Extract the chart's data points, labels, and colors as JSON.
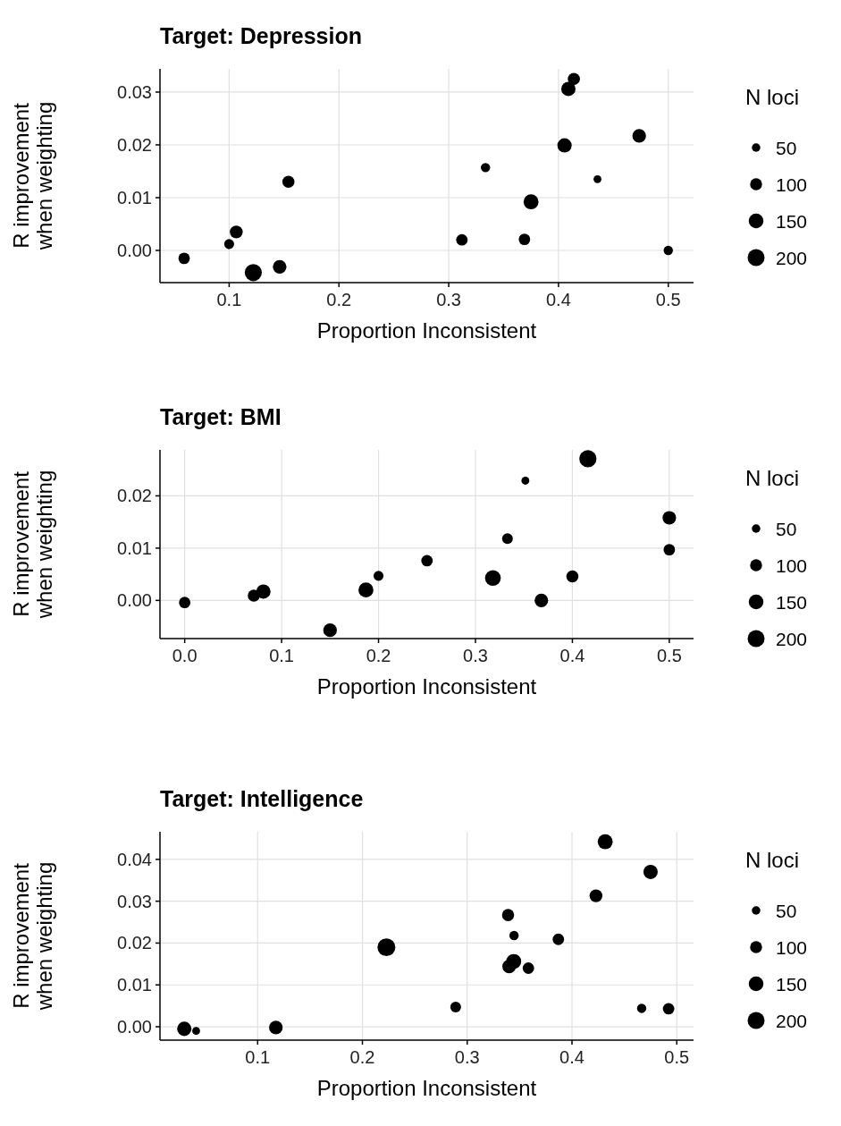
{
  "chart_data": [
    {
      "type": "bubble",
      "title": "Target: Depression",
      "xlabel": "Proportion Inconsistent",
      "ylabel": "R improvement\nwhen weighting",
      "legend_title": "N loci",
      "grid": true,
      "color": "#000000",
      "x": [
        0.059,
        0.1,
        0.1065,
        0.122,
        0.146,
        0.154,
        0.312,
        0.3335,
        0.369,
        0.375,
        0.4055,
        0.409,
        0.414,
        0.4355,
        0.4735,
        0.5
      ],
      "values": [
        -0.0015,
        0.0012,
        0.0035,
        -0.0042,
        -0.0031,
        0.013,
        0.002,
        0.0157,
        0.0021,
        0.0092,
        0.0199,
        0.0306,
        0.0325,
        0.0135,
        0.0217,
        0
      ],
      "sizes": [
        91,
        69,
        115,
        204,
        128,
        102,
        91,
        60,
        91,
        156,
        142,
        142,
        102,
        43,
        128,
        60
      ],
      "size_legend": [
        50,
        100,
        150,
        200
      ],
      "xlim": [
        0.037,
        0.523
      ],
      "xticks": [
        0.1,
        0.2,
        0.3,
        0.4,
        0.5
      ],
      "ylim": [
        -0.0061,
        0.0344
      ],
      "yticks": [
        {
          "value": 0,
          "label": "0.00"
        },
        {
          "value": 0.01,
          "label": "0.01"
        },
        {
          "value": 0.02,
          "label": "0.02"
        },
        {
          "value": 0.03,
          "label": "0.03"
        }
      ]
    },
    {
      "type": "bubble",
      "title": "Target: BMI",
      "xlabel": "Proportion Inconsistent",
      "ylabel": "R improvement\nwhen weighting",
      "legend_title": "N loci",
      "grid": true,
      "color": "#000000",
      "x": [
        0,
        0.0713,
        0.0812,
        0.15,
        0.187,
        0.2,
        0.25,
        0.318,
        0.333,
        0.3515,
        0.368,
        0.4,
        0.416,
        0.5,
        0.5
      ],
      "values": [
        -0.0004,
        0.0009,
        0.0017,
        -0.0057,
        0.002,
        0.0047,
        0.0076,
        0.0043,
        0.0118,
        0.0229,
        0,
        0.0046,
        0.0271,
        0.0158,
        0.0097
      ],
      "sizes": [
        91,
        102,
        142,
        128,
        156,
        69,
        91,
        171,
        80,
        43,
        128,
        102,
        204,
        128,
        91
      ],
      "size_legend": [
        50,
        100,
        150,
        200
      ],
      "xlim": [
        -0.0255,
        0.525
      ],
      "xticks": [
        {
          "value": 0,
          "label": "0.0"
        },
        0.1,
        0.2,
        0.3,
        0.4,
        0.5
      ],
      "ylim": [
        -0.0073,
        0.0288
      ],
      "yticks": [
        {
          "value": 0,
          "label": "0.00"
        },
        {
          "value": 0.01,
          "label": "0.01"
        },
        {
          "value": 0.02,
          "label": "0.02"
        }
      ]
    },
    {
      "type": "bubble",
      "title": "Target: Intelligence",
      "xlabel": "Proportion Inconsistent",
      "ylabel": "R improvement\nwhen weighting",
      "legend_title": "N loci",
      "grid": true,
      "color": "#000000",
      "x": [
        0.03,
        0.0413,
        0.1174,
        0.2229,
        0.289,
        0.339,
        0.3447,
        0.34,
        0.3444,
        0.3584,
        0.387,
        0.4229,
        0.4317,
        0.475,
        0.4665,
        0.4922
      ],
      "values": [
        -0.0005,
        -0.001,
        -0.0002,
        0.019,
        0.0047,
        0.0267,
        0.0218,
        0.0144,
        0.0156,
        0.014,
        0.0209,
        0.0313,
        0.0442,
        0.037,
        0.0044,
        0.0043
      ],
      "sizes": [
        142,
        43,
        128,
        221,
        80,
        102,
        60,
        128,
        156,
        91,
        91,
        115,
        156,
        142,
        60,
        91
      ],
      "size_legend": [
        50,
        100,
        150,
        200
      ],
      "xlim": [
        0.0068,
        0.516
      ],
      "xticks": [
        0.1,
        0.2,
        0.3,
        0.4,
        0.5
      ],
      "ylim": [
        -0.0032,
        0.0466
      ],
      "yticks": [
        {
          "value": 0,
          "label": "0.00"
        },
        {
          "value": 0.01,
          "label": "0.01"
        },
        {
          "value": 0.02,
          "label": "0.02"
        },
        {
          "value": 0.03,
          "label": "0.03"
        },
        {
          "value": 0.04,
          "label": "0.04"
        }
      ]
    }
  ]
}
